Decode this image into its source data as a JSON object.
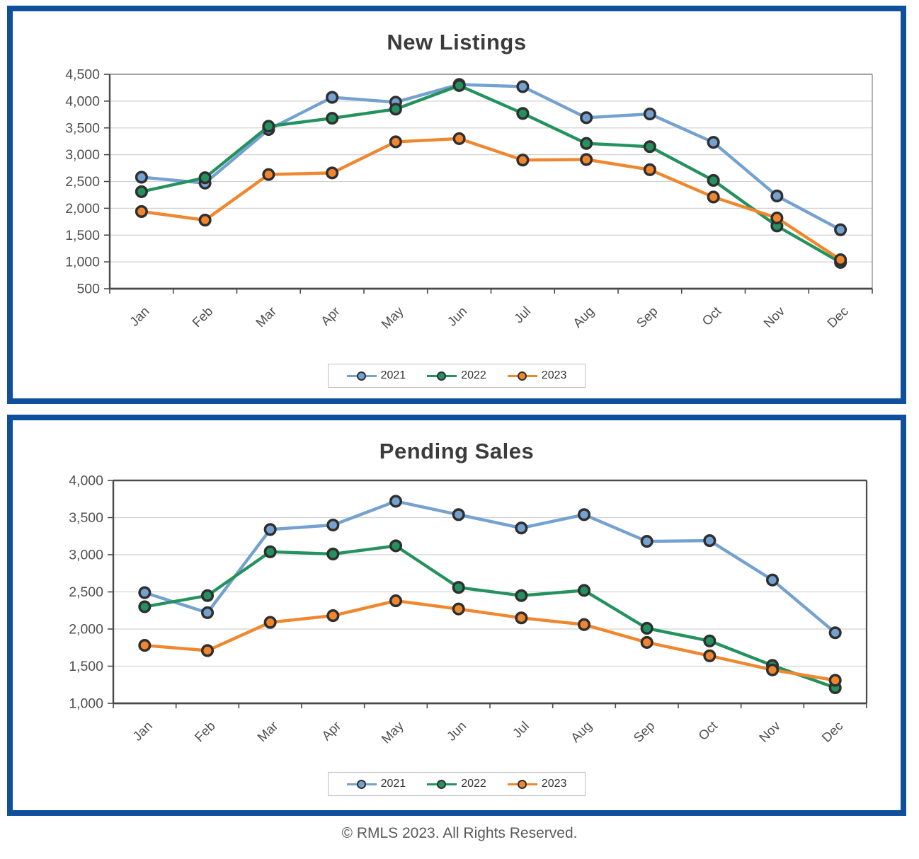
{
  "page": {
    "footer_text": "© RMLS 2023. All Rights Reserved."
  },
  "colors": {
    "frame_border": "#0F4F9C",
    "series_2021": "#74A1CF",
    "series_2022": "#24925F",
    "series_2023": "#F0862D",
    "marker_ring": "#2F2F2F",
    "gridline": "#D2D2D2",
    "axis_dark": "#4A4A4A",
    "axis_light": "#A0A0A0",
    "title_color": "#3B3B3B",
    "label_color": "#4F4F4F",
    "legend_border": "#BFBFBF"
  },
  "chart_data": [
    {
      "type": "line",
      "title": "New Listings",
      "categories": [
        "Jan",
        "Feb",
        "Mar",
        "Apr",
        "May",
        "Jun",
        "Jul",
        "Aug",
        "Sep",
        "Oct",
        "Nov",
        "Dec"
      ],
      "series": [
        {
          "name": "2021",
          "color_key": "series_2021",
          "values": [
            2580,
            2470,
            3470,
            4070,
            3980,
            4310,
            4270,
            3690,
            3760,
            3230,
            2230,
            1600
          ]
        },
        {
          "name": "2022",
          "color_key": "series_2022",
          "values": [
            2310,
            2570,
            3530,
            3680,
            3850,
            4290,
            3770,
            3210,
            3150,
            2520,
            1670,
            990
          ]
        },
        {
          "name": "2023",
          "color_key": "series_2023",
          "values": [
            1940,
            1780,
            2630,
            2660,
            3240,
            3300,
            2900,
            2910,
            2720,
            2210,
            1820,
            1040
          ]
        }
      ],
      "ylim": [
        500,
        4500
      ],
      "ytick_step": 500,
      "grid": true,
      "legend_position": "bottom",
      "border_style": "light_top"
    },
    {
      "type": "line",
      "title": "Pending Sales",
      "categories": [
        "Jan",
        "Feb",
        "Mar",
        "Apr",
        "May",
        "Jun",
        "Jul",
        "Aug",
        "Sep",
        "Oct",
        "Nov",
        "Dec"
      ],
      "series": [
        {
          "name": "2021",
          "color_key": "series_2021",
          "values": [
            2490,
            2220,
            3340,
            3400,
            3720,
            3540,
            3360,
            3540,
            3180,
            3190,
            2660,
            1950
          ]
        },
        {
          "name": "2022",
          "color_key": "series_2022",
          "values": [
            2300,
            2450,
            3040,
            3010,
            3120,
            2560,
            2450,
            2520,
            2010,
            1840,
            1510,
            1210
          ]
        },
        {
          "name": "2023",
          "color_key": "series_2023",
          "values": [
            1780,
            1710,
            2090,
            2180,
            2380,
            2270,
            2150,
            2060,
            1820,
            1640,
            1450,
            1310
          ]
        }
      ],
      "ylim": [
        1000,
        4000
      ],
      "ytick_step": 500,
      "grid": true,
      "legend_position": "bottom",
      "border_style": "dark_all"
    }
  ]
}
